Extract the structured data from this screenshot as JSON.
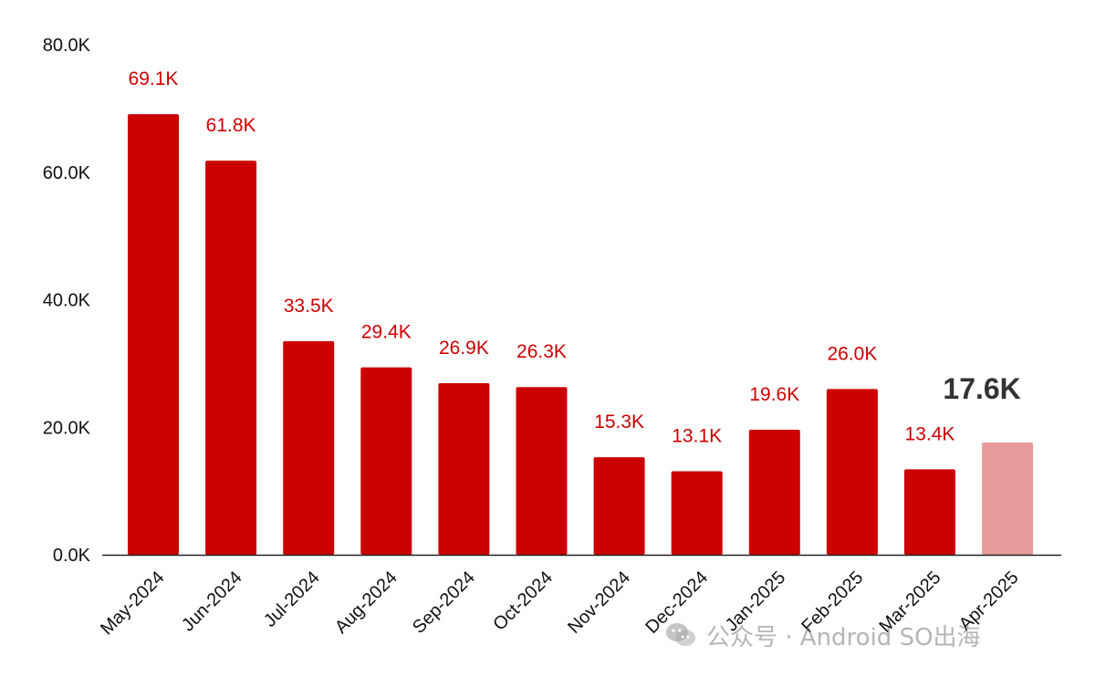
{
  "chart_data": {
    "type": "bar",
    "categories": [
      "May-2024",
      "Jun-2024",
      "Jul-2024",
      "Aug-2024",
      "Sep-2024",
      "Oct-2024",
      "Nov-2024",
      "Dec-2024",
      "Jan-2025",
      "Feb-2025",
      "Mar-2025",
      "Apr-2025"
    ],
    "values": [
      69.1,
      61.8,
      33.5,
      29.4,
      26.9,
      26.3,
      15.3,
      13.1,
      19.6,
      26.0,
      13.4,
      17.6
    ],
    "value_labels": [
      "69.1K",
      "61.8K",
      "33.5K",
      "29.4K",
      "26.9K",
      "26.3K",
      "15.3K",
      "13.1K",
      "19.6K",
      "26.0K",
      "13.4K",
      "17.6K"
    ],
    "unit": "K",
    "ylim": [
      0,
      80
    ],
    "yticks": [
      {
        "value": 0,
        "label": "0.0K"
      },
      {
        "value": 20,
        "label": "20.0K"
      },
      {
        "value": 40,
        "label": "40.0K"
      },
      {
        "value": 60,
        "label": "60.0K"
      },
      {
        "value": 80,
        "label": "80.0K"
      }
    ],
    "grid": false,
    "title": "",
    "xlabel": "",
    "ylabel": "",
    "highlight_index": 11,
    "colors": {
      "bar": "#cc0000",
      "bar_highlight": "#e89a9a",
      "label": "#cc0000",
      "label_highlight": "#333333",
      "axis": "#222222"
    }
  },
  "watermark": {
    "icon": "wechat-icon",
    "text": "公众号 · Android SO出海"
  }
}
